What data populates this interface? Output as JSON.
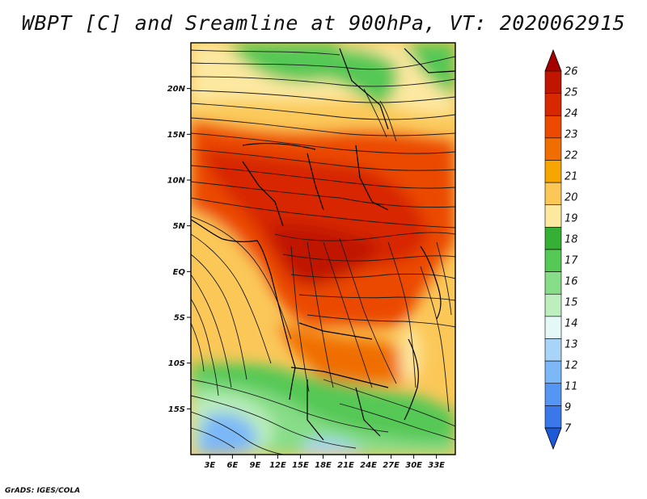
{
  "title": "WBPT [C] and Sreamline at 900hPa, VT: 2020062915",
  "credit": "GrADS: IGES/COLA",
  "map": {
    "lon_range": [
      0.5,
      35.5
    ],
    "lat_range": [
      -20,
      25
    ],
    "lon_ticks": [
      "3E",
      "6E",
      "9E",
      "12E",
      "15E",
      "18E",
      "21E",
      "24E",
      "27E",
      "30E",
      "33E"
    ],
    "lon_tick_values": [
      3,
      6,
      9,
      12,
      15,
      18,
      21,
      24,
      27,
      30,
      33
    ],
    "lat_ticks": [
      "20N",
      "15N",
      "10N",
      "5N",
      "EQ",
      "5S",
      "10S",
      "15S"
    ],
    "lat_tick_values": [
      20,
      15,
      10,
      5,
      0,
      -5,
      -10,
      -15
    ]
  },
  "colorbar": {
    "labels": [
      "26",
      "25",
      "24",
      "23",
      "22",
      "21",
      "20",
      "19",
      "18",
      "17",
      "16",
      "15",
      "14",
      "13",
      "12",
      "11",
      "9",
      "7"
    ],
    "colors": [
      "#a50000",
      "#c01600",
      "#d72800",
      "#eb4a00",
      "#f06e00",
      "#f7a500",
      "#fbc858",
      "#fde8a0",
      "#35b035",
      "#55c855",
      "#88dd88",
      "#bdeebd",
      "#e4f8f8",
      "#a8d4f8",
      "#7cb8f8",
      "#5596f4",
      "#3a78ea",
      "#1e5ad8"
    ]
  }
}
